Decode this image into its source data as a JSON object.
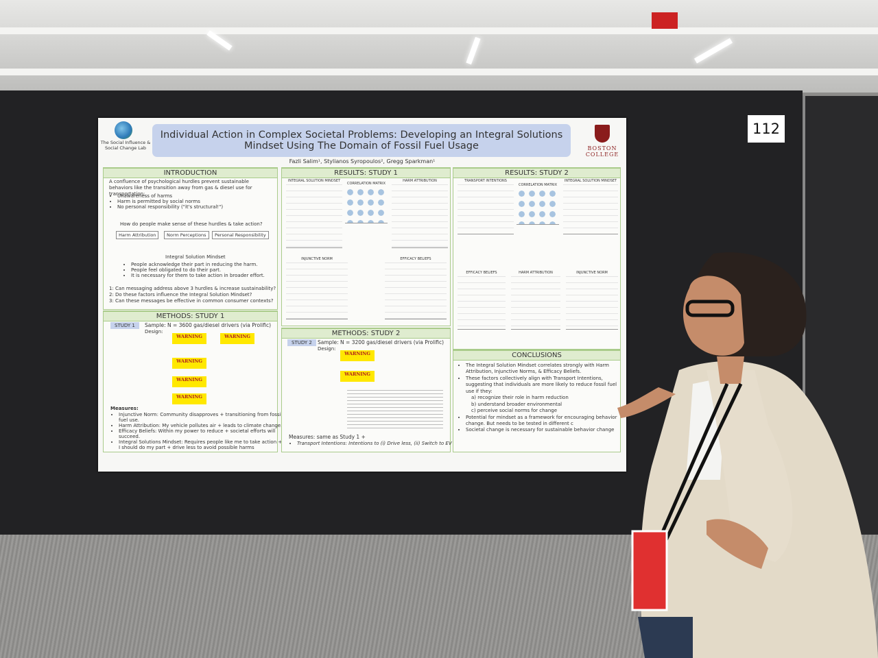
{
  "booth_number": "112",
  "poster": {
    "lab": "The Social Influence & Social Change Lab",
    "title": "Individual Action in Complex Societal Problems: Developing an Integral Solutions Mindset Using The Domain of Fossil Fuel Usage",
    "institution": "BOSTON COLLEGE",
    "authors": "Fazli Salim¹, Stylianos Syropoulos², Gregg Sparkman¹",
    "introduction": {
      "heading": "INTRODUCTION",
      "text": "A confluence of psychological hurdles prevent sustainable behaviors like the transition away from gas & diesel use for transportation:",
      "bullets": [
        "Unawareness of harms",
        "Harm is permitted by social norms",
        "No personal responsibility (\"it's structural!\")"
      ],
      "question": "How do people make sense of these hurdles & take action?",
      "factors": [
        "Harm Attribution",
        "Norm Perceptions",
        "Personal Responsibility"
      ],
      "mindset_title": "Integral Solution Mindset",
      "mindset_bullets": [
        "People acknowledge their part in reducing the harm.",
        "People feel obligated to do their part.",
        "It is necessary for them to take action in broader effort."
      ],
      "research_questions": [
        "1: Can messaging address above 3 hurdles & increase sustainability?",
        "2: Do these factors influence the Integral Solution Mindset?",
        "3: Can these messages be effective in common consumer contexts?"
      ]
    },
    "methods_study1": {
      "heading": "METHODS: STUDY 1",
      "tag": "STUDY 1",
      "sample": "Sample: N = 3600 gas/diesel drivers (via Prolific)",
      "design": "Design:",
      "warnings": [
        "WARNING",
        "WARNING",
        "WARNING",
        "WARNING",
        "WARNING"
      ],
      "measures_label": "Measures:",
      "measures": [
        "Injunctive Norm: Community disapproves + transitioning from fossil fuel use.",
        "Harm Attribution: My vehicle pollutes air + leads to climate change.",
        "Efficacy Beliefs: Within my power to reduce + societal efforts will succeed.",
        "Integral Solutions Mindset: Requires people like me to take action + I should do my part + drive less to avoid possible harms"
      ]
    },
    "results_study1": {
      "heading": "RESULTS: STUDY 1",
      "panels": [
        "INTEGRAL SOLUTION MINDSET",
        "CORRELATION MATRIX",
        "HARM ATTRIBUTION",
        "INJUNCTIVE NORM",
        "EFFICACY BELIEFS"
      ]
    },
    "methods_study2": {
      "heading": "METHODS: STUDY 2",
      "tag": "STUDY 2",
      "sample": "Sample: N = 3200 gas/diesel drivers (via Prolific)",
      "design": "Design:",
      "warnings": [
        "WARNING",
        "WARNING"
      ],
      "measures_label": "Measures: same as Study 1 +",
      "measures": [
        "Transport Intentions: Intentions to (i) Drive less, (ii) Switch to EV"
      ]
    },
    "results_study2": {
      "heading": "RESULTS: STUDY 2",
      "panels": [
        "TRANSPORT INTENTIONS",
        "CORRELATION MATRIX",
        "INTEGRAL SOLUTION MINDSET",
        "EFFICACY BELIEFS",
        "HARM ATTRIBUTION",
        "INJUNCTIVE NORM"
      ]
    },
    "conclusions": {
      "heading": "CONCLUSIONS",
      "bullets": [
        "The Integral Solution Mindset correlates strongly with Harm Attribution, Injunctive Norms, & Efficacy Beliefs.",
        "These factors collectively align with Transport Intentions, suggesting that individuals are more likely to reduce fossil fuel use if they:",
        "Potential for mindset as a framework for encouraging behavior change. But needs to be tested in different c",
        "Societal change is necessary for sustainable behavior change"
      ],
      "sub_items": [
        "a) recognize their role in harm reduction",
        "b) understand broader environmental",
        "c) perceive social norms for change"
      ]
    }
  }
}
